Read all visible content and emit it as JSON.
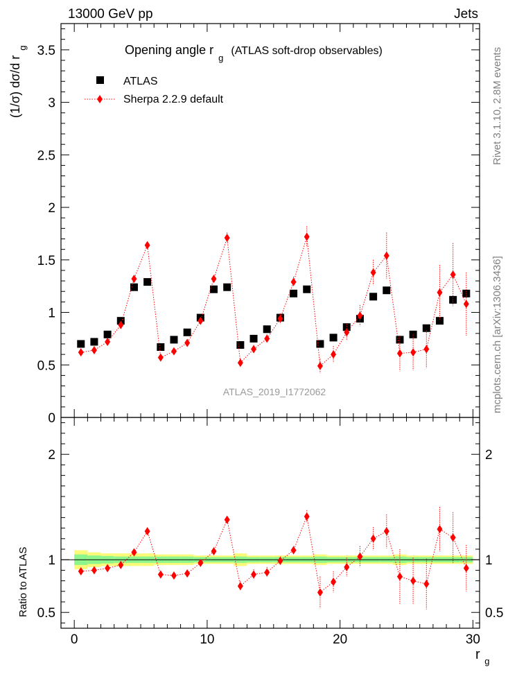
{
  "header": {
    "left_label": "13000 GeV pp",
    "right_label": "Jets"
  },
  "side_labels": {
    "rivet": "Rivet 3.1.10, 2.8M events",
    "mcplots": "mcplots.cern.ch [arXiv:1306.3436]"
  },
  "watermark": "ATLAS_2019_I1772062",
  "colors": {
    "data": "#000000",
    "mc": "#ff0000",
    "band_inner": "#8cf58c",
    "band_outer": "#fafa78",
    "axis": "#000000",
    "watermark": "#999999",
    "side_text": "#808080"
  },
  "chart_data": [
    {
      "type": "scatter",
      "title": "Opening angle r_g (ATLAS soft-drop observables)",
      "title_main": "Opening angle r",
      "title_sub": "g",
      "title_rest": "(ATLAS soft-drop observables)",
      "ylabel": "(1/σ) dσ/d r_g",
      "ylabel_main": "(1/σ) dσ/d r",
      "ylabel_sub": "g",
      "xlim": [
        -1,
        30.5
      ],
      "ylim": [
        0,
        3.75
      ],
      "yticks": [
        0,
        0.5,
        1,
        1.5,
        2,
        2.5,
        3,
        3.5
      ],
      "yticklabels": [
        "0",
        "0.5",
        "1",
        "1.5",
        "2",
        "2.5",
        "3",
        "3.5"
      ],
      "legend": {
        "placement": "top-left"
      },
      "x": [
        0.5,
        1.5,
        2.5,
        3.5,
        4.5,
        5.5,
        6.5,
        7.5,
        8.5,
        9.5,
        10.5,
        11.5,
        12.5,
        13.5,
        14.5,
        15.5,
        16.5,
        17.5,
        18.5,
        19.5,
        20.5,
        21.5,
        22.5,
        23.5,
        24.5,
        25.5,
        26.5,
        27.5,
        28.5,
        29.5
      ],
      "series": [
        {
          "name": "ATLAS",
          "marker": "square",
          "values": [
            0.7,
            0.72,
            0.79,
            0.92,
            1.24,
            1.29,
            0.67,
            0.74,
            0.81,
            0.95,
            1.22,
            1.24,
            0.69,
            0.75,
            0.84,
            0.95,
            1.18,
            1.22,
            0.7,
            0.76,
            0.86,
            0.94,
            1.15,
            1.21,
            0.74,
            0.79,
            0.85,
            0.92,
            1.12,
            1.18
          ]
        },
        {
          "name": "Sherpa 2.2.9 default",
          "marker": "diamond",
          "values": [
            0.62,
            0.64,
            0.72,
            0.88,
            1.32,
            1.64,
            0.57,
            0.63,
            0.71,
            0.92,
            1.32,
            1.71,
            0.52,
            0.65,
            0.75,
            0.94,
            1.29,
            1.72,
            0.49,
            0.6,
            0.81,
            0.97,
            1.38,
            1.54,
            0.61,
            0.62,
            0.65,
            1.19,
            1.36,
            1.08
          ],
          "errors": [
            0.02,
            0.02,
            0.02,
            0.03,
            0.03,
            0.03,
            0.02,
            0.02,
            0.03,
            0.03,
            0.03,
            0.05,
            0.04,
            0.04,
            0.04,
            0.05,
            0.05,
            0.1,
            0.07,
            0.08,
            0.08,
            0.1,
            0.12,
            0.22,
            0.17,
            0.17,
            0.18,
            0.26,
            0.3,
            0.3
          ]
        }
      ]
    },
    {
      "type": "scatter",
      "ylabel": "Ratio to ATLAS",
      "xlabel": "r_g",
      "xlabel_main": "r",
      "xlabel_sub": "g",
      "xlim": [
        -1,
        30.5
      ],
      "ylim": [
        0.35,
        2.35
      ],
      "xticks": [
        0,
        10,
        20,
        30
      ],
      "xticklabels": [
        "0",
        "10",
        "20",
        "30"
      ],
      "yticks": [
        0.5,
        1,
        2
      ],
      "yticklabels": [
        "0.5",
        "1",
        "2"
      ],
      "x": [
        0.5,
        1.5,
        2.5,
        3.5,
        4.5,
        5.5,
        6.5,
        7.5,
        8.5,
        9.5,
        10.5,
        11.5,
        12.5,
        13.5,
        14.5,
        15.5,
        16.5,
        17.5,
        18.5,
        19.5,
        20.5,
        21.5,
        22.5,
        23.5,
        24.5,
        25.5,
        26.5,
        27.5,
        28.5,
        29.5
      ],
      "band_inner": [
        0.05,
        0.04,
        0.035,
        0.03,
        0.03,
        0.03,
        0.03,
        0.03,
        0.03,
        0.025,
        0.025,
        0.025,
        0.03,
        0.025,
        0.025,
        0.025,
        0.025,
        0.025,
        0.03,
        0.025,
        0.025,
        0.025,
        0.025,
        0.025,
        0.03,
        0.025,
        0.025,
        0.025,
        0.025,
        0.025
      ],
      "band_outer": [
        0.09,
        0.07,
        0.06,
        0.06,
        0.06,
        0.06,
        0.05,
        0.05,
        0.05,
        0.04,
        0.04,
        0.04,
        0.06,
        0.04,
        0.04,
        0.04,
        0.04,
        0.04,
        0.05,
        0.04,
        0.04,
        0.04,
        0.04,
        0.04,
        0.05,
        0.04,
        0.04,
        0.04,
        0.04,
        0.04
      ],
      "series": [
        {
          "name": "Sherpa 2.2.9 default",
          "marker": "diamond",
          "values": [
            0.89,
            0.9,
            0.92,
            0.95,
            1.07,
            1.27,
            0.86,
            0.85,
            0.87,
            0.97,
            1.08,
            1.38,
            0.75,
            0.86,
            0.88,
            0.99,
            1.09,
            1.41,
            0.69,
            0.79,
            0.93,
            1.03,
            1.2,
            1.27,
            0.84,
            0.8,
            0.77,
            1.29,
            1.21,
            0.92
          ],
          "errors": [
            0.02,
            0.02,
            0.02,
            0.03,
            0.02,
            0.02,
            0.03,
            0.03,
            0.03,
            0.03,
            0.03,
            0.03,
            0.05,
            0.05,
            0.05,
            0.04,
            0.04,
            0.06,
            0.15,
            0.1,
            0.09,
            0.1,
            0.11,
            0.16,
            0.26,
            0.22,
            0.24,
            0.21,
            0.24,
            0.22
          ]
        }
      ]
    }
  ]
}
